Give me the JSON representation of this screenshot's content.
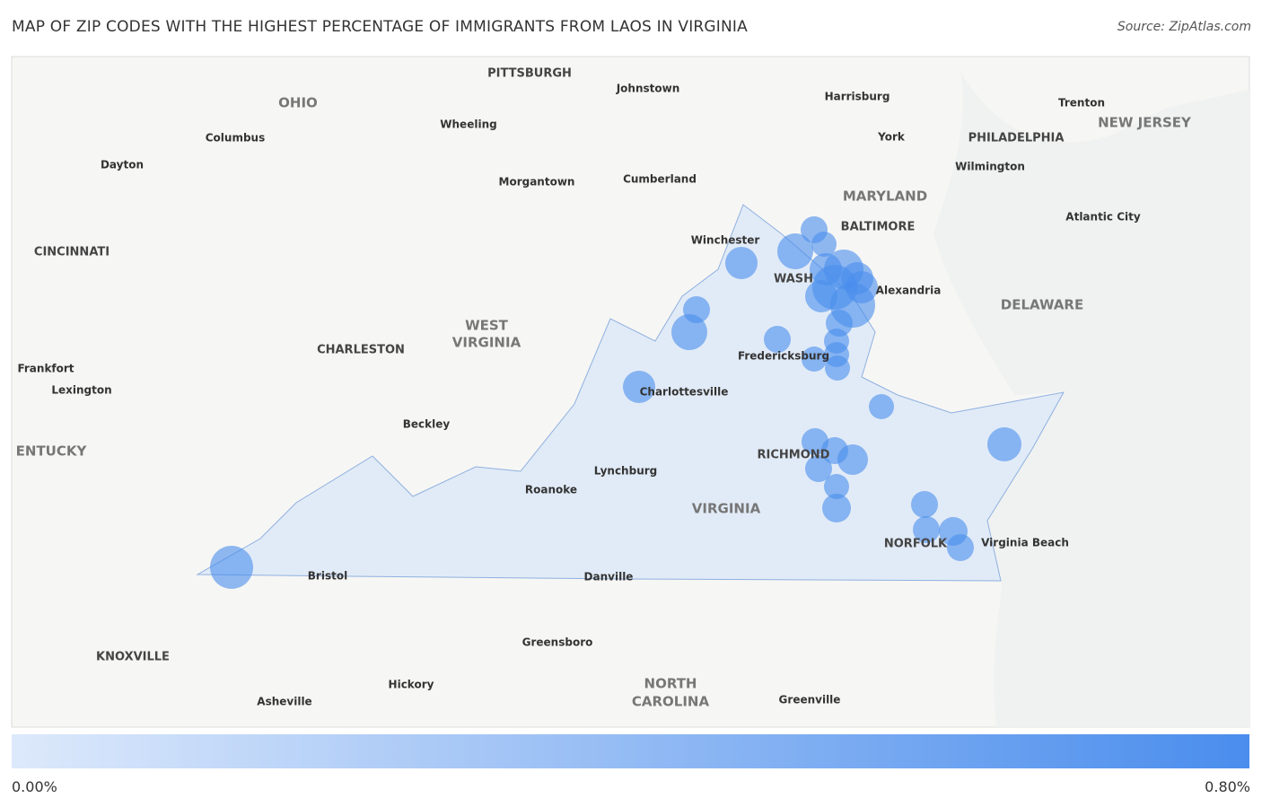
{
  "header": {
    "title": "MAP OF ZIP CODES WITH THE HIGHEST PERCENTAGE OF IMMIGRANTS FROM LAOS IN VIRGINIA",
    "source": "Source: ZipAtlas.com"
  },
  "map": {
    "places": [
      "PITTSBURGH",
      "Johnstown",
      "Harrisburg",
      "Trenton",
      "OHIO",
      "NEW JERSEY",
      "Wheeling",
      "Columbus",
      "York",
      "PHILADELPHIA",
      "Dayton",
      "Wilmington",
      "Morgantown",
      "Cumberland",
      "MARYLAND",
      "BALTIMORE",
      "Atlantic City",
      "CINCINNATI",
      "Winchester",
      "WASH",
      "Alexandria",
      "DELAWARE",
      "WEST",
      "VIRGINIA",
      "CHARLESTON",
      "Fredericksburg",
      "Frankfort",
      "Lexington",
      "Charlottesville",
      "Beckley",
      "ENTUCKY",
      "RICHMOND",
      "Lynchburg",
      "Roanoke",
      "VIRGINIA",
      "NORFOLK",
      "Virginia Beach",
      "Bristol",
      "Danville",
      "Greensboro",
      "KNOXVILLE",
      "NORTH",
      "CAROLINA",
      "Hickory",
      "Asheville",
      "Greenville"
    ]
  },
  "legend": {
    "min": "0.00%",
    "max": "0.80%"
  }
}
